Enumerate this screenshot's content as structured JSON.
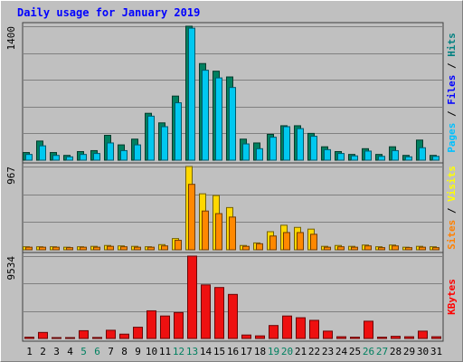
{
  "chart_data": {
    "type": "bar",
    "title": "Daily usage for January 2019",
    "categories": [
      "1",
      "2",
      "3",
      "4",
      "5",
      "6",
      "7",
      "8",
      "9",
      "10",
      "11",
      "12",
      "13",
      "14",
      "15",
      "16",
      "17",
      "18",
      "19",
      "20",
      "21",
      "22",
      "23",
      "24",
      "25",
      "26",
      "27",
      "28",
      "29",
      "30",
      "31"
    ],
    "weekend_days": [
      "5",
      "6",
      "12",
      "13",
      "19",
      "20",
      "26",
      "27"
    ],
    "panels": [
      {
        "name": "pages-files-hits",
        "max_label": "1400",
        "ymax": 1400,
        "right_labels": [
          {
            "text": "Pages",
            "color": "#00c0ff"
          },
          {
            "text": " / ",
            "color": "#000000"
          },
          {
            "text": "Files",
            "color": "#0000ff"
          },
          {
            "text": " / ",
            "color": "#000000"
          },
          {
            "text": "Hits",
            "color": "#008080"
          }
        ],
        "series": [
          {
            "name": "Hits",
            "color": "#008060",
            "values": [
              80,
              200,
              80,
              50,
              90,
              100,
              260,
              160,
              220,
              490,
              390,
              670,
              1400,
              1010,
              930,
              870,
              220,
              180,
              270,
              360,
              360,
              280,
              140,
              90,
              60,
              120,
              60,
              140,
              50,
              210,
              50
            ]
          },
          {
            "name": "Files",
            "color": "#00c8f0",
            "values": [
              60,
              150,
              50,
              35,
              60,
              70,
              180,
              100,
              160,
              460,
              350,
              600,
              1380,
              940,
              860,
              760,
              170,
              120,
              240,
              350,
              330,
              250,
              110,
              70,
              45,
              95,
              40,
              100,
              35,
              130,
              40
            ]
          }
        ]
      },
      {
        "name": "sites-visits",
        "max_label": "967",
        "ymax": 967,
        "right_labels": [
          {
            "text": "Sites",
            "color": "#ff8000"
          },
          {
            "text": " / ",
            "color": "#000000"
          },
          {
            "text": "Visits",
            "color": "#ffff00"
          }
        ],
        "series": [
          {
            "name": "Visits",
            "color": "#ffd800",
            "values": [
              35,
              35,
              35,
              30,
              35,
              40,
              50,
              45,
              40,
              35,
              60,
              130,
              967,
              650,
              630,
              490,
              50,
              80,
              210,
              285,
              260,
              240,
              40,
              50,
              40,
              55,
              35,
              55,
              30,
              40,
              35
            ]
          },
          {
            "name": "Sites",
            "color": "#ff8800",
            "values": [
              30,
              30,
              30,
              25,
              30,
              30,
              40,
              35,
              30,
              30,
              45,
              110,
              760,
              450,
              420,
              380,
              40,
              70,
              160,
              200,
              200,
              180,
              30,
              35,
              30,
              45,
              25,
              45,
              25,
              30,
              25
            ]
          }
        ]
      },
      {
        "name": "kbytes",
        "max_label": "9534",
        "ymax": 9534,
        "right_labels": [
          {
            "text": "KBytes",
            "color": "#ff0000"
          }
        ],
        "series": [
          {
            "name": "KBytes",
            "color": "#ee1010",
            "values": [
              150,
              700,
              100,
              80,
              900,
              120,
              950,
              500,
              1300,
              3200,
              2600,
              3000,
              9534,
              6200,
              5900,
              5100,
              400,
              300,
              1500,
              2600,
              2400,
              2100,
              850,
              200,
              150,
              2000,
              150,
              250,
              200,
              850,
              200
            ]
          }
        ]
      }
    ]
  }
}
